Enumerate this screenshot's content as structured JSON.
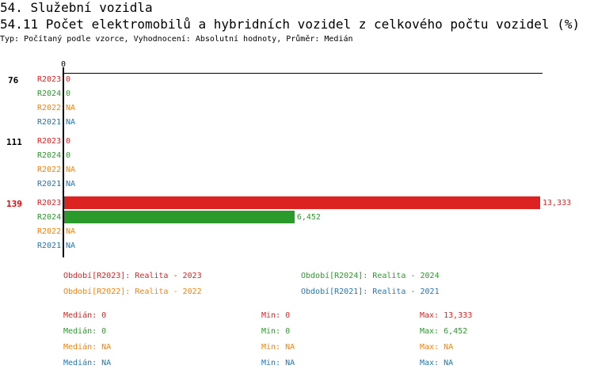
{
  "section_title": "54. Služební vozidla",
  "title": "54.11 Počet elektromobilů a hybridních vozidel z celkového počtu vozidel (%)",
  "subtitle": "Typ: Počítaný podle vzorce, Vyhodnocení: Absolutní hodnoty, Průměr: Medián",
  "colors": {
    "R2023": "#dd2222",
    "R2024": "#2a9a2a",
    "R2022": "#ff8000",
    "R2021": "#1f77b4"
  },
  "chart_data": {
    "type": "bar",
    "orientation": "horizontal",
    "x_tick_labels": [
      "0"
    ],
    "xlim": [
      0,
      13.333
    ],
    "groups": [
      {
        "label": "76",
        "highlight": false,
        "bars": [
          {
            "series": "R2023",
            "value": 0,
            "label": "0"
          },
          {
            "series": "R2024",
            "value": 0,
            "label": "0"
          },
          {
            "series": "R2022",
            "value": null,
            "label": "NA"
          },
          {
            "series": "R2021",
            "value": null,
            "label": "NA"
          }
        ]
      },
      {
        "label": "111",
        "highlight": false,
        "bars": [
          {
            "series": "R2023",
            "value": 0,
            "label": "0"
          },
          {
            "series": "R2024",
            "value": 0,
            "label": "0"
          },
          {
            "series": "R2022",
            "value": null,
            "label": "NA"
          },
          {
            "series": "R2021",
            "value": null,
            "label": "NA"
          }
        ]
      },
      {
        "label": "139",
        "highlight": true,
        "bars": [
          {
            "series": "R2023",
            "value": 13.333,
            "label": "13,333"
          },
          {
            "series": "R2024",
            "value": 6.452,
            "label": "6,452"
          },
          {
            "series": "R2022",
            "value": null,
            "label": "NA"
          },
          {
            "series": "R2021",
            "value": null,
            "label": "NA"
          }
        ]
      }
    ],
    "legend": [
      {
        "series": "R2023",
        "text": "Období[R2023]: Realita - 2023"
      },
      {
        "series": "R2024",
        "text": "Období[R2024]: Realita - 2024"
      },
      {
        "series": "R2022",
        "text": "Období[R2022]: Realita - 2022"
      },
      {
        "series": "R2021",
        "text": "Období[R2021]: Realita - 2021"
      }
    ],
    "stats": [
      {
        "series": "R2023",
        "median": "Medián: 0",
        "min": "Min: 0",
        "max": "Max: 13,333"
      },
      {
        "series": "R2024",
        "median": "Medián: 0",
        "min": "Min: 0",
        "max": "Max: 6,452"
      },
      {
        "series": "R2022",
        "median": "Medián: NA",
        "min": "Min: NA",
        "max": "Max: NA"
      },
      {
        "series": "R2021",
        "median": "Medián: NA",
        "min": "Min: NA",
        "max": "Max: NA"
      }
    ]
  }
}
